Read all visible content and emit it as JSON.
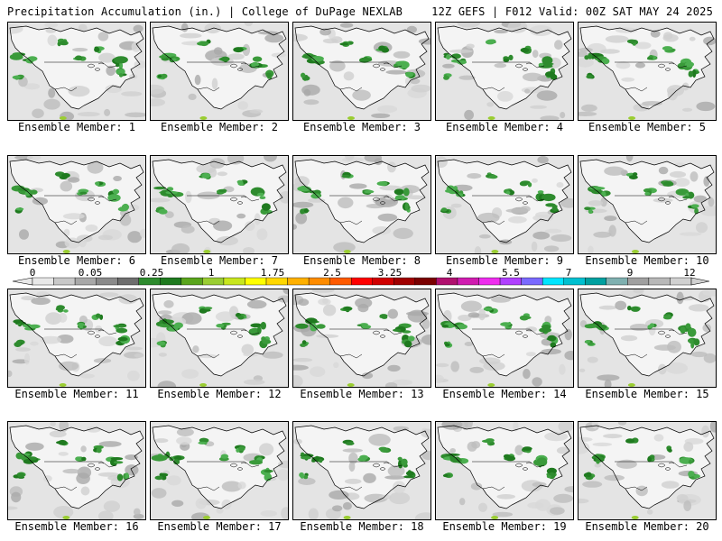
{
  "header": {
    "left": "Precipitation Accumulation (in.) | College of DuPage NEXLAB",
    "right": "12Z GEFS | F012 Valid: 00Z SAT MAY 24 2025"
  },
  "panels": [
    {
      "label": "Ensemble Member: 1"
    },
    {
      "label": "Ensemble Member: 2"
    },
    {
      "label": "Ensemble Member: 3"
    },
    {
      "label": "Ensemble Member: 4"
    },
    {
      "label": "Ensemble Member: 5"
    },
    {
      "label": "Ensemble Member: 6"
    },
    {
      "label": "Ensemble Member: 7"
    },
    {
      "label": "Ensemble Member: 8"
    },
    {
      "label": "Ensemble Member: 9"
    },
    {
      "label": "Ensemble Member: 10"
    },
    {
      "label": "Ensemble Member: 11"
    },
    {
      "label": "Ensemble Member: 12"
    },
    {
      "label": "Ensemble Member: 13"
    },
    {
      "label": "Ensemble Member: 14"
    },
    {
      "label": "Ensemble Member: 15"
    },
    {
      "label": "Ensemble Member: 16"
    },
    {
      "label": "Ensemble Member: 17"
    },
    {
      "label": "Ensemble Member: 18"
    },
    {
      "label": "Ensemble Member: 19"
    },
    {
      "label": "Ensemble Member: 20"
    }
  ],
  "colorbar": {
    "tick_labels": [
      "0",
      "0.05",
      "0.25",
      "1",
      "1.75",
      "2.5",
      "3.25",
      "4",
      "5.5",
      "7",
      "9",
      "12"
    ],
    "colors": [
      "#e8e8e8",
      "#c8c8c8",
      "#a8a8a8",
      "#8a8a8a",
      "#6e6e6e",
      "#2e8b2e",
      "#1f7a1f",
      "#5aa51c",
      "#9acd32",
      "#c8e61e",
      "#ffff00",
      "#ffd700",
      "#ffb000",
      "#ff8c00",
      "#ff5a00",
      "#ff0000",
      "#d00000",
      "#a00000",
      "#7a0000",
      "#b0106e",
      "#d01cb0",
      "#ee2cee",
      "#b040ff",
      "#7a6aff",
      "#00e5ff",
      "#00c0d0",
      "#00a0a0",
      "#7fb0b0",
      "#a0a0a0",
      "#b8b8b8",
      "#d0d0d0"
    ]
  }
}
